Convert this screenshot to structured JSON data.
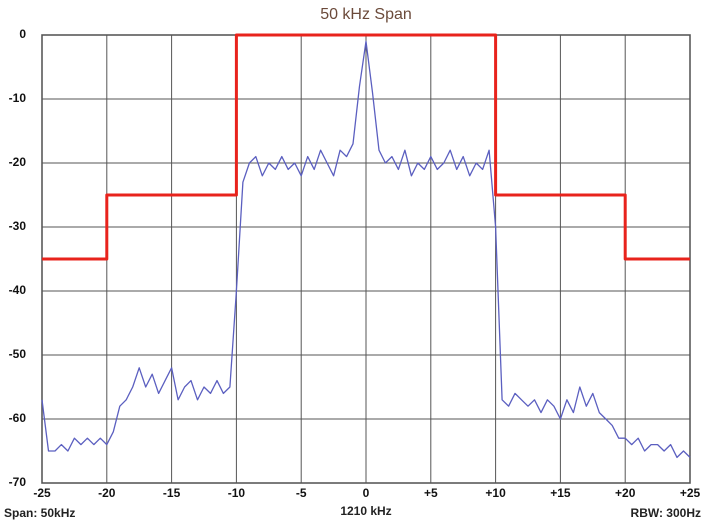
{
  "chart_data": {
    "type": "line",
    "title": "50 kHz Span",
    "footer_left": "Span: 50kHz",
    "footer_center": "1210 kHz",
    "footer_right": "RBW: 300Hz",
    "xlim": [
      -25,
      25
    ],
    "ylim": [
      -70,
      0
    ],
    "xticks": [
      -25,
      -20,
      -15,
      -10,
      -5,
      0,
      {
        "value": 5,
        "label": "+5"
      },
      {
        "value": 10,
        "label": "+10"
      },
      {
        "value": 15,
        "label": "+15"
      },
      {
        "value": 20,
        "label": "+20"
      },
      {
        "value": 25,
        "label": "+25"
      }
    ],
    "yticks": [
      0,
      -10,
      -20,
      -30,
      -40,
      -50,
      -60,
      -70
    ],
    "grid": true,
    "series": [
      {
        "color": "#5b5fc0",
        "x": [
          -25,
          -24.5,
          -24,
          -23.5,
          -23,
          -22.5,
          -22,
          -21.5,
          -21,
          -20.5,
          -20,
          -19.5,
          -19,
          -18.5,
          -18,
          -17.5,
          -17,
          -16.5,
          -16,
          -15.5,
          -15,
          -14.5,
          -14,
          -13.5,
          -13,
          -12.5,
          -12,
          -11.5,
          -11,
          -10.5,
          -10,
          -9.5,
          -9,
          -8.5,
          -8,
          -7.5,
          -7,
          -6.5,
          -6,
          -5.5,
          -5,
          -4.5,
          -4,
          -3.5,
          -3,
          -2.5,
          -2,
          -1.5,
          -1,
          -0.5,
          0,
          0.5,
          1,
          1.5,
          2,
          2.5,
          3,
          3.5,
          4,
          4.5,
          5,
          5.5,
          6,
          6.5,
          7,
          7.5,
          8,
          8.5,
          9,
          9.5,
          10,
          10.5,
          11,
          11.5,
          12,
          12.5,
          13,
          13.5,
          14,
          14.5,
          15,
          15.5,
          16,
          16.5,
          17,
          17.5,
          18,
          18.5,
          19,
          19.5,
          20,
          20.5,
          21,
          21.5,
          22,
          22.5,
          23,
          23.5,
          24,
          24.5,
          25
        ],
        "values": [
          -57,
          -65,
          -65,
          -64,
          -65,
          -63,
          -64,
          -63,
          -64,
          -63,
          -64,
          -62,
          -58,
          -57,
          -55,
          -52,
          -55,
          -53,
          -56,
          -54,
          -52,
          -57,
          -55,
          -54,
          -57,
          -55,
          -56,
          -54,
          -56,
          -55,
          -40,
          -23,
          -20,
          -19,
          -22,
          -20,
          -21,
          -19,
          -21,
          -20,
          -22,
          -19,
          -21,
          -18,
          -20,
          -22,
          -18,
          -19,
          -17,
          -8,
          -1,
          -9,
          -18,
          -20,
          -19,
          -21,
          -18,
          -22,
          -20,
          -21,
          -19,
          -21,
          -20,
          -18,
          -21,
          -19,
          -22,
          -20,
          -21,
          -18,
          -30,
          -57,
          -58,
          -56,
          -57,
          -58,
          -57,
          -59,
          -57,
          -58,
          -60,
          -57,
          -59,
          -55,
          -58,
          -56,
          -59,
          -60,
          -61,
          -63,
          -63,
          -64,
          -63,
          -65,
          -64,
          -64,
          -65,
          -64,
          -66,
          -65,
          -66
        ]
      },
      {
        "color": "#e8231c",
        "x": [
          -25,
          -20,
          -20,
          -10,
          -10,
          10,
          10,
          20,
          20,
          25
        ],
        "values": [
          -35,
          -35,
          -25,
          -25,
          0,
          0,
          -25,
          -25,
          -35,
          -35
        ]
      }
    ]
  }
}
